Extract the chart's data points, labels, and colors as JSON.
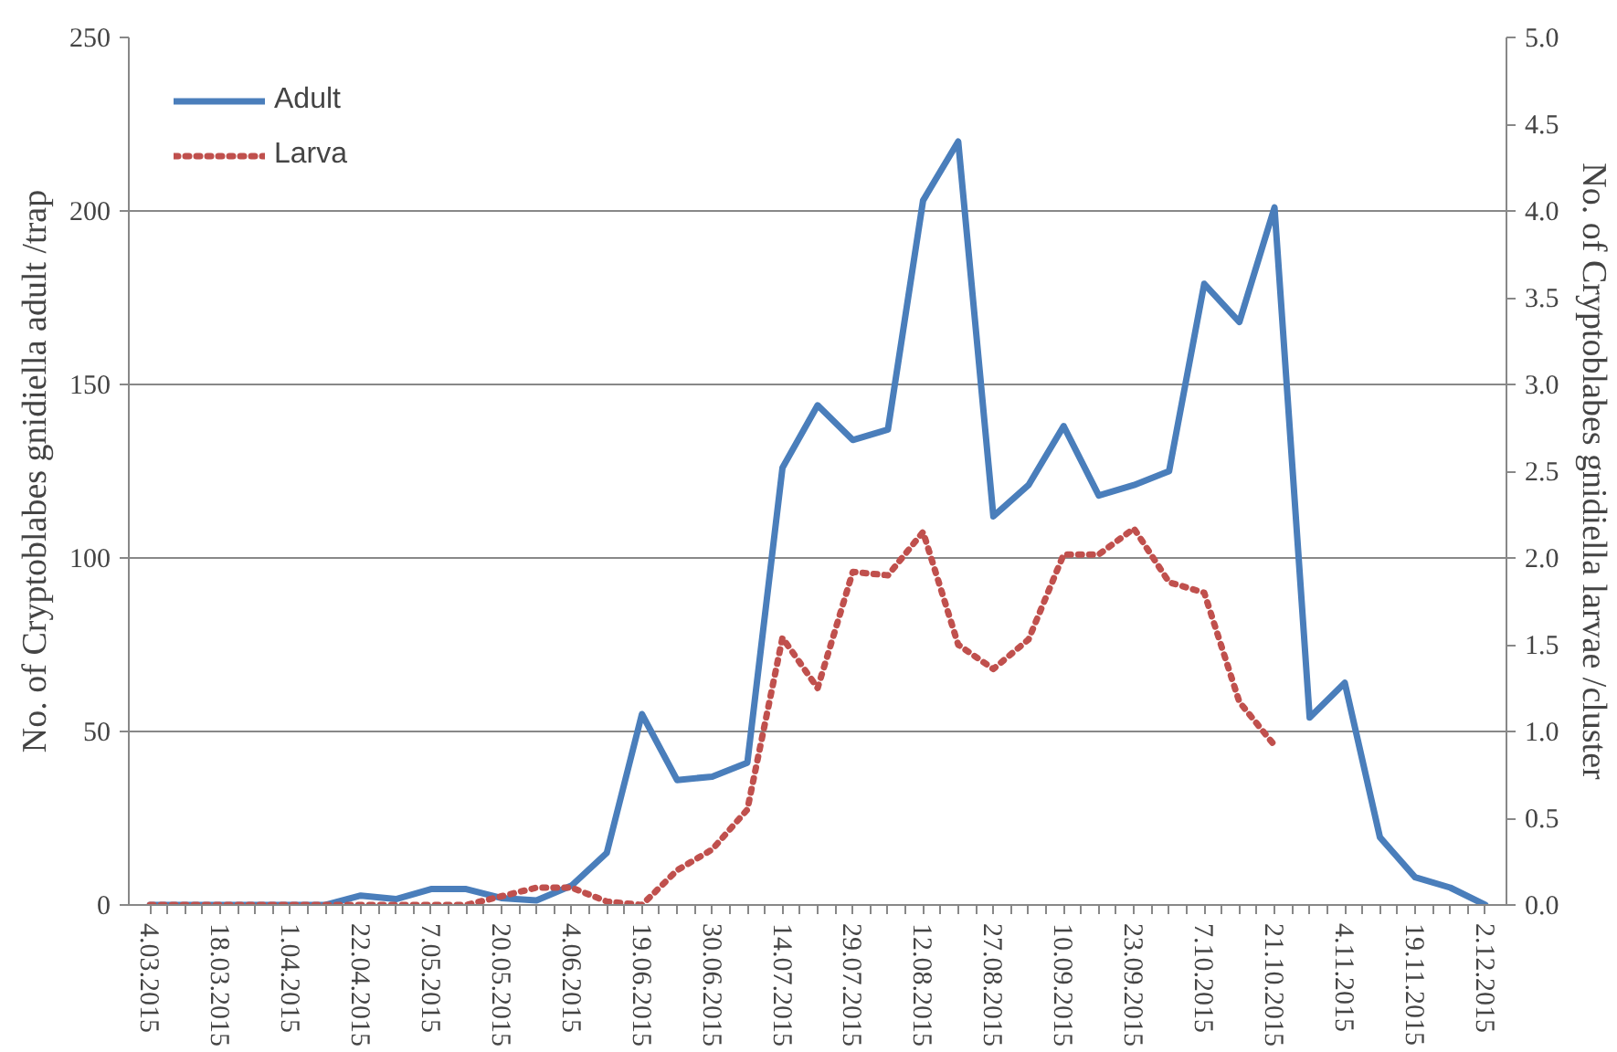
{
  "chart_data": {
    "type": "line",
    "ylabel": "No. of Cryptoblabes gnidiella adult /trap",
    "y2label": "No. of Cryptoblabes gnidiella larvae /cluster",
    "categories": [
      "4.03.2015",
      null,
      "18.03.2015",
      null,
      "1.04.2015",
      null,
      "22.04.2015",
      null,
      "7.05.2015",
      null,
      "20.05.2015",
      null,
      "4.06.2015",
      null,
      "19.06.2015",
      null,
      "30.06.2015",
      null,
      "14.07.2015",
      null,
      "29.07.2015",
      null,
      "12.08.2015",
      null,
      "27.08.2015",
      null,
      "10.09.2015",
      null,
      "23.09.2015",
      null,
      "7.10.2015",
      null,
      "21.10.2015",
      null,
      "4.11.2015",
      null,
      "19.11.2015",
      null,
      "2.12.2015"
    ],
    "series": [
      {
        "name": "Adult",
        "color": "#4a7ebb",
        "line_style": "solid",
        "values": [
          0,
          0,
          0,
          0,
          0,
          0,
          2.7,
          1.7,
          4.6,
          4.6,
          2,
          1.3,
          5.6,
          15,
          55,
          36,
          37,
          41,
          126,
          144,
          134,
          137,
          203,
          220,
          112,
          121,
          138,
          118,
          121,
          125,
          179,
          168,
          201,
          54,
          64,
          19.5,
          8,
          5,
          0
        ]
      },
      {
        "name": "Larva",
        "color": "#c0504d",
        "axis": "y2",
        "line_style": "dotted",
        "values": [
          0,
          0,
          0,
          0,
          0,
          0,
          0,
          0,
          0,
          0,
          0.05,
          0.1,
          0.1,
          0.02,
          0,
          0.2,
          0.32,
          0.55,
          1.54,
          1.25,
          1.92,
          1.9,
          2.15,
          1.5,
          1.36,
          1.53,
          2.02,
          2.02,
          2.17,
          1.86,
          1.8,
          1.17,
          0.92,
          null,
          null,
          null,
          null,
          null,
          null
        ]
      }
    ],
    "ylim": [
      0,
      250
    ],
    "yticks": [
      0,
      50,
      100,
      150,
      200,
      250
    ],
    "y2lim": [
      0,
      5
    ],
    "y2ticks": [
      {
        "value": 0,
        "label": "0.0"
      },
      {
        "value": 0.5,
        "label": "0.5"
      },
      {
        "value": 1,
        "label": "1.0"
      },
      {
        "value": 1.5,
        "label": "1.5"
      },
      {
        "value": 2,
        "label": "2.0"
      },
      {
        "value": 2.5,
        "label": "2.5"
      },
      {
        "value": 3,
        "label": "3.0"
      },
      {
        "value": 3.5,
        "label": "3.5"
      },
      {
        "value": 4,
        "label": "4.0"
      },
      {
        "value": 4.5,
        "label": "4.5"
      },
      {
        "value": 5,
        "label": "5.0"
      }
    ],
    "grid": "y",
    "legend": "top left",
    "marker": "none"
  }
}
